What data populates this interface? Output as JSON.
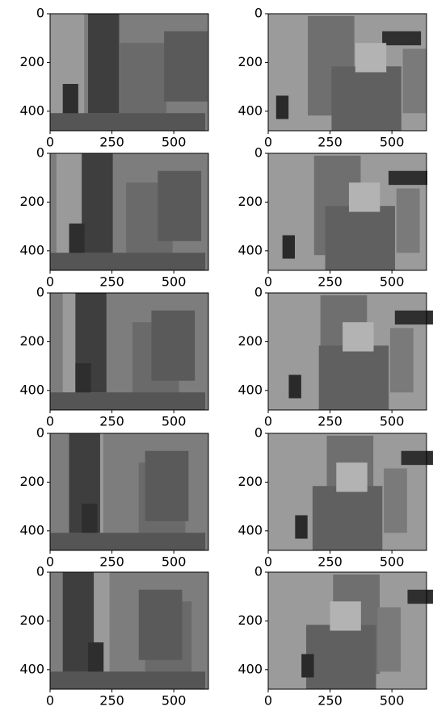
{
  "chart_data": [
    {
      "type": "image",
      "xlim": [
        0,
        640
      ],
      "ylim": [
        480,
        0
      ],
      "xticks": [
        0,
        250,
        500
      ],
      "yticks": [
        0,
        200,
        400
      ]
    },
    {
      "type": "image",
      "xlim": [
        0,
        640
      ],
      "ylim": [
        480,
        0
      ],
      "xticks": [
        0,
        250,
        500
      ],
      "yticks": [
        0,
        200,
        400
      ]
    },
    {
      "type": "image",
      "xlim": [
        0,
        640
      ],
      "ylim": [
        480,
        0
      ],
      "xticks": [
        0,
        250,
        500
      ],
      "yticks": [
        0,
        200,
        400
      ]
    },
    {
      "type": "image",
      "xlim": [
        0,
        640
      ],
      "ylim": [
        480,
        0
      ],
      "xticks": [
        0,
        250,
        500
      ],
      "yticks": [
        0,
        200,
        400
      ]
    },
    {
      "type": "image",
      "xlim": [
        0,
        640
      ],
      "ylim": [
        480,
        0
      ],
      "xticks": [
        0,
        250,
        500
      ],
      "yticks": [
        0,
        200,
        400
      ]
    },
    {
      "type": "image",
      "xlim": [
        0,
        640
      ],
      "ylim": [
        480,
        0
      ],
      "xticks": [
        0,
        250,
        500
      ],
      "yticks": [
        0,
        200,
        400
      ]
    },
    {
      "type": "image",
      "xlim": [
        0,
        640
      ],
      "ylim": [
        480,
        0
      ],
      "xticks": [
        0,
        250,
        500
      ],
      "yticks": [
        0,
        200,
        400
      ]
    },
    {
      "type": "image",
      "xlim": [
        0,
        640
      ],
      "ylim": [
        480,
        0
      ],
      "xticks": [
        0,
        250,
        500
      ],
      "yticks": [
        0,
        200,
        400
      ]
    },
    {
      "type": "image",
      "xlim": [
        0,
        640
      ],
      "ylim": [
        480,
        0
      ],
      "xticks": [
        0,
        250,
        500
      ],
      "yticks": [
        0,
        200,
        400
      ]
    },
    {
      "type": "image",
      "xlim": [
        0,
        640
      ],
      "ylim": [
        480,
        0
      ],
      "xticks": [
        0,
        250,
        500
      ],
      "yticks": [
        0,
        200,
        400
      ]
    }
  ]
}
